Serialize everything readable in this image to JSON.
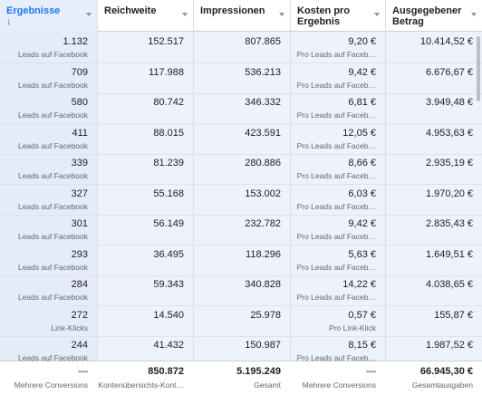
{
  "header": {
    "columns": [
      "Ergebnisse",
      "Reichweite",
      "Impressionen",
      "Kosten pro Ergebnis",
      "Ausgegebener Betrag"
    ],
    "sort_indicator": "↓"
  },
  "rows": [
    [
      [
        "1.132",
        "Leads auf Facebook"
      ],
      [
        "152.517"
      ],
      [
        "807.865"
      ],
      [
        "9,20 €",
        "Pro Leads auf Faceb…"
      ],
      [
        "10.414,52 €"
      ]
    ],
    [
      [
        "709",
        "Leads auf Facebook"
      ],
      [
        "117.988"
      ],
      [
        "536.213"
      ],
      [
        "9,42 €",
        "Pro Leads auf Faceb…"
      ],
      [
        "6.676,67 €"
      ]
    ],
    [
      [
        "580",
        "Leads auf Facebook"
      ],
      [
        "80.742"
      ],
      [
        "346.332"
      ],
      [
        "6,81 €",
        "Pro Leads auf Faceb…"
      ],
      [
        "3.949,48 €"
      ]
    ],
    [
      [
        "411",
        "Leads auf Facebook"
      ],
      [
        "88.015"
      ],
      [
        "423.591"
      ],
      [
        "12,05 €",
        "Pro Leads auf Faceb…"
      ],
      [
        "4.953,63 €"
      ]
    ],
    [
      [
        "339",
        "Leads auf Facebook"
      ],
      [
        "81.239"
      ],
      [
        "280.886"
      ],
      [
        "8,66 €",
        "Pro Leads auf Faceb…"
      ],
      [
        "2.935,19 €"
      ]
    ],
    [
      [
        "327",
        "Leads auf Facebook"
      ],
      [
        "55.168"
      ],
      [
        "153.002"
      ],
      [
        "6,03 €",
        "Pro Leads auf Faceb…"
      ],
      [
        "1.970,20 €"
      ]
    ],
    [
      [
        "301",
        "Leads auf Facebook"
      ],
      [
        "56.149"
      ],
      [
        "232.782"
      ],
      [
        "9,42 €",
        "Pro Leads auf Faceb…"
      ],
      [
        "2.835,43 €"
      ]
    ],
    [
      [
        "293",
        "Leads auf Facebook"
      ],
      [
        "36.495"
      ],
      [
        "118.296"
      ],
      [
        "5,63 €",
        "Pro Leads auf Faceb…"
      ],
      [
        "1.649,51 €"
      ]
    ],
    [
      [
        "284",
        "Leads auf Facebook"
      ],
      [
        "59.343"
      ],
      [
        "340.828"
      ],
      [
        "14,22 €",
        "Pro Leads auf Faceb…"
      ],
      [
        "4.038,65 €"
      ]
    ],
    [
      [
        "272",
        "Link-Klicks"
      ],
      [
        "14.540"
      ],
      [
        "25.978"
      ],
      [
        "0,57 €",
        "Pro Link-Klick"
      ],
      [
        "155,87 €"
      ]
    ],
    [
      [
        "244",
        "Leads auf Facebook"
      ],
      [
        "41.432"
      ],
      [
        "150.987"
      ],
      [
        "8,15 €",
        "Pro Leads auf Faceb…"
      ],
      [
        "1.987,52 €"
      ]
    ]
  ],
  "footer": [
    [
      "—",
      "Mehrere Conversions"
    ],
    [
      "850.872",
      "Kontenübersichts-Kont…"
    ],
    [
      "5.195.249",
      "Gesamt"
    ],
    [
      "—",
      "Mehrere Conversions"
    ],
    [
      "66.945,30 €",
      "Gesamtausgaben"
    ]
  ]
}
